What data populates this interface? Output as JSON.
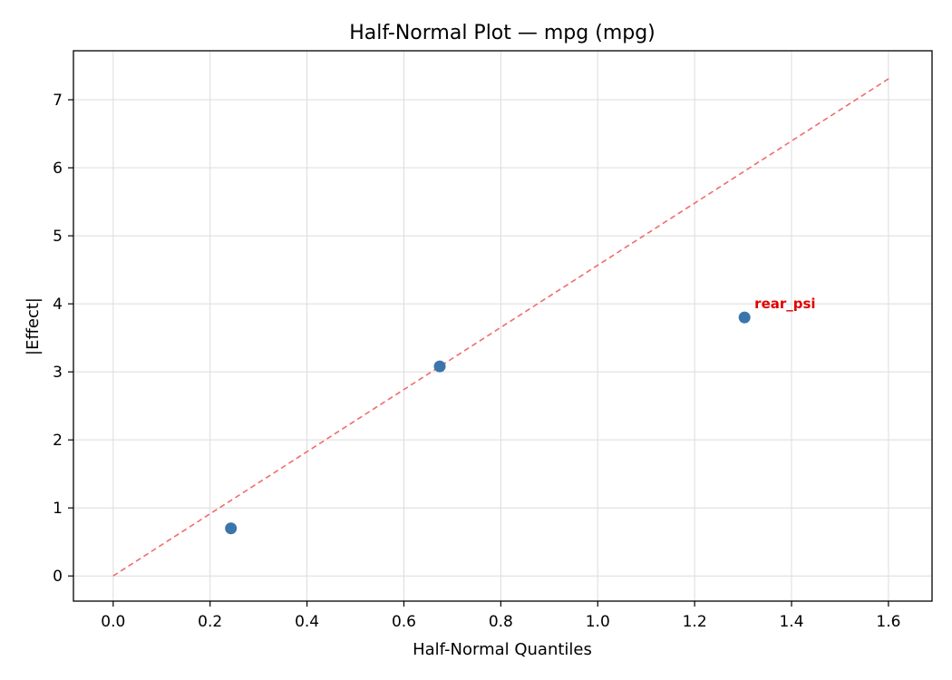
{
  "chart_data": {
    "type": "scatter",
    "title": "Half-Normal Plot — mpg (mpg)",
    "xlabel": "Half-Normal Quantiles",
    "ylabel": "|Effect|",
    "xlim": [
      -0.082,
      1.69
    ],
    "ylim": [
      -0.37,
      7.72
    ],
    "xticks": [
      0.0,
      0.2,
      0.4,
      0.6,
      0.8,
      1.0,
      1.2,
      1.4,
      1.6
    ],
    "xtick_labels": [
      "0.0",
      "0.2",
      "0.4",
      "0.6",
      "0.8",
      "1.0",
      "1.2",
      "1.4",
      "1.6"
    ],
    "yticks": [
      0,
      1,
      2,
      3,
      4,
      5,
      6,
      7
    ],
    "ytick_labels": [
      "0",
      "1",
      "2",
      "3",
      "4",
      "5",
      "6",
      "7"
    ],
    "grid": true,
    "points": [
      {
        "x": 0.243,
        "y": 0.7
      },
      {
        "x": 0.674,
        "y": 3.08
      },
      {
        "x": 1.303,
        "y": 3.8
      }
    ],
    "reference_line": {
      "x": [
        0.0,
        1.605
      ],
      "y": [
        0.0,
        7.33
      ],
      "style": "dashed",
      "color": "#f26b6b"
    },
    "annotations": [
      {
        "text": "rear_psi",
        "x": 1.303,
        "y": 3.8,
        "color": "#e00000"
      }
    ],
    "marker_color": "#3a76ab"
  }
}
